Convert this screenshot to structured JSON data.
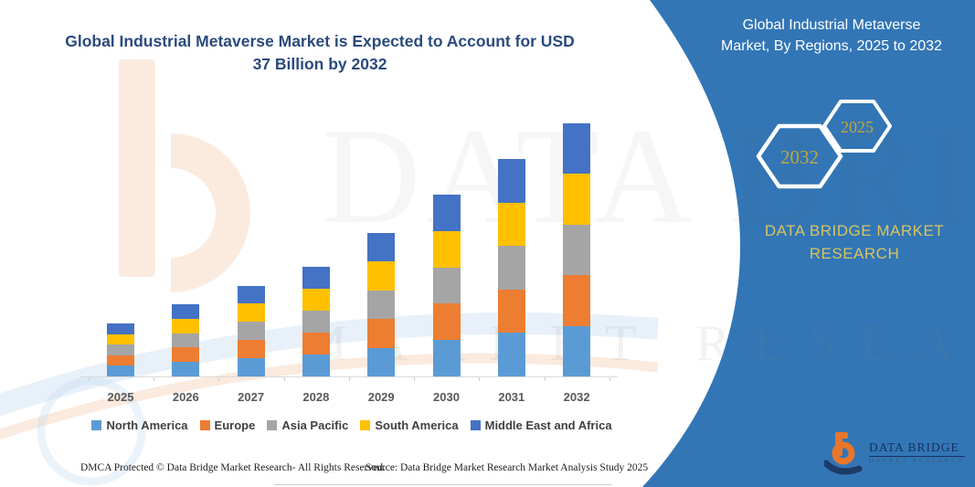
{
  "title": {
    "line1": "Global Industrial Metaverse Market is Expected to Account for USD",
    "line2": "37 Billion by 2032"
  },
  "panel": {
    "heading_line1": "Global Industrial Metaverse",
    "heading_line2": "Market, By Regions, 2025 to 2032",
    "hexagons": [
      {
        "label": "2032"
      },
      {
        "label": "2025"
      }
    ],
    "brand": {
      "line1": "DATA BRIDGE MARKET",
      "line2": "RESEARCH"
    },
    "logo": {
      "name": "DATA BRIDGE",
      "tagline": "MARKET RESEARCH"
    },
    "colors": {
      "background": "#3276B6",
      "heading_text": "#FFFFFF",
      "hex_year_text": "#C2A53B",
      "brand_text": "#D8C45E"
    }
  },
  "chart_data": {
    "type": "bar",
    "stacked": true,
    "title": "Global Industrial Metaverse Market is Expected to Account for USD 37 Billion by 2032",
    "unit": "USD Billion",
    "categories": [
      "2025",
      "2026",
      "2027",
      "2028",
      "2029",
      "2030",
      "2031",
      "2032"
    ],
    "series": [
      {
        "name": "North America",
        "color": "#5B9BD5",
        "values": [
          1.55,
          2.1,
          2.65,
          3.2,
          4.2,
          5.3,
          6.35,
          7.4
        ]
      },
      {
        "name": "Europe",
        "color": "#ED7D31",
        "values": [
          1.55,
          2.1,
          2.65,
          3.2,
          4.2,
          5.3,
          6.35,
          7.4
        ]
      },
      {
        "name": "Asia Pacific",
        "color": "#A5A5A5",
        "values": [
          1.55,
          2.1,
          2.65,
          3.2,
          4.2,
          5.3,
          6.35,
          7.4
        ]
      },
      {
        "name": "South America",
        "color": "#FFC000",
        "values": [
          1.55,
          2.1,
          2.65,
          3.2,
          4.2,
          5.3,
          6.35,
          7.4
        ]
      },
      {
        "name": "Middle East and Africa",
        "color": "#4472C4",
        "values": [
          1.55,
          2.1,
          2.65,
          3.2,
          4.2,
          5.3,
          6.35,
          7.4
        ]
      }
    ],
    "totals": [
      7.75,
      10.5,
      13.25,
      16.0,
      21.0,
      26.5,
      31.75,
      37.0
    ],
    "ylim": [
      0,
      39
    ],
    "grid": false,
    "legend_position": "bottom",
    "xlabel": "",
    "ylabel": ""
  },
  "watermark": {
    "text_main": "DATA BRIDGE",
    "text_sub": "MARKET RESEARCH"
  },
  "footer": {
    "left": "DMCA Protected © Data Bridge Market Research-  All Rights Reserved.",
    "right": "Source: Data Bridge Market Research  Market Analysis Study 2025"
  }
}
